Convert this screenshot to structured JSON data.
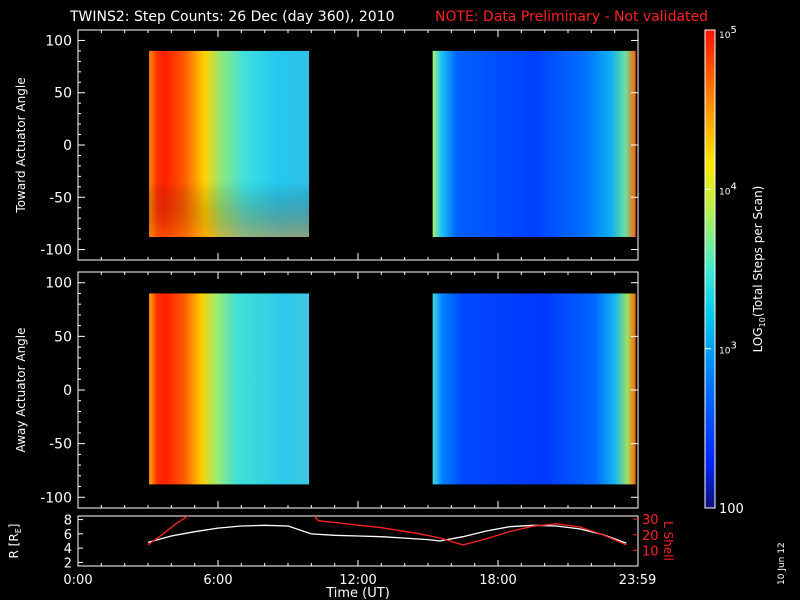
{
  "header": {
    "title": "TWINS2: Step Counts: 26 Dec (day 360), 2010",
    "note": "NOTE: Data Preliminary - Not validated",
    "note_color": "#ff2020"
  },
  "footer": {
    "date_stamp": "10 Jun 12"
  },
  "colors": {
    "background": "#000000",
    "axes": "#ffffff",
    "lshell": "#ff2020",
    "radius": "#ffffff"
  },
  "colorbar": {
    "label": "LOG10(Total Steps per Scan)",
    "label_main": "LOG",
    "label_sub": "10",
    "label_rest": "(Total Steps per Scan)",
    "ticks": [
      {
        "value": 100,
        "text": "100"
      },
      {
        "value": 1000,
        "text": "10^3"
      },
      {
        "value": 10000,
        "text": "10^4"
      },
      {
        "value": 100000,
        "text": "10^5"
      }
    ],
    "scale": "log",
    "range": [
      100,
      100000
    ]
  },
  "chart_data": [
    {
      "type": "heatmap",
      "title": "",
      "xlabel": "",
      "ylabel": "Toward Actuator Angle",
      "xlim": [
        0,
        24
      ],
      "ylim": [
        -110,
        110
      ],
      "yticks": [
        100,
        50,
        0,
        -50,
        -100
      ],
      "data_blocks": [
        {
          "t_start": 3.05,
          "t_end": 9.9,
          "angle_range": [
            -88,
            90
          ]
        },
        {
          "t_start": 15.2,
          "t_end": 23.9,
          "angle_range": [
            -88,
            90
          ]
        }
      ]
    },
    {
      "type": "heatmap",
      "title": "",
      "xlabel": "",
      "ylabel": "Away Actuator Angle",
      "xlim": [
        0,
        24
      ],
      "ylim": [
        -110,
        110
      ],
      "yticks": [
        100,
        50,
        0,
        -50,
        -100
      ],
      "data_blocks": [
        {
          "t_start": 3.05,
          "t_end": 9.9,
          "angle_range": [
            -88,
            90
          ]
        },
        {
          "t_start": 15.2,
          "t_end": 23.9,
          "angle_range": [
            -88,
            90
          ]
        }
      ]
    },
    {
      "type": "line",
      "title": "",
      "xlabel": "Time (UT)",
      "xticks": [
        {
          "value": 0,
          "text": "0:00"
        },
        {
          "value": 6,
          "text": "6:00"
        },
        {
          "value": 12,
          "text": "12:00"
        },
        {
          "value": 18,
          "text": "18:00"
        },
        {
          "value": 23.98,
          "text": "23:59"
        }
      ],
      "xlim": [
        0,
        24
      ],
      "ylabel_left": "R [RE]",
      "ylabel_left_main": "R [R",
      "ylabel_left_sub": "E",
      "ylabel_left_end": "]",
      "ylim_left": [
        1.5,
        8.5
      ],
      "yticks_left": [
        2,
        4,
        6,
        8
      ],
      "ylabel_right": "L Shell",
      "ylim_right": [
        0,
        32
      ],
      "yticks_right": [
        10,
        20,
        30
      ],
      "series": [
        {
          "axis": "left",
          "color": "#ffffff",
          "x": [
            3.0,
            4.0,
            5.0,
            6.0,
            7.0,
            8.0,
            9.0,
            10.0,
            11.0,
            12.0,
            13.0,
            14.0,
            15.0,
            15.5,
            16.5,
            17.5,
            18.5,
            19.5,
            20.5,
            21.5,
            22.5,
            23.5
          ],
          "y": [
            4.8,
            5.7,
            6.3,
            6.8,
            7.1,
            7.2,
            7.1,
            6.0,
            5.8,
            5.7,
            5.6,
            5.4,
            5.2,
            5.0,
            5.6,
            6.4,
            7.0,
            7.2,
            7.1,
            6.7,
            5.9,
            4.7
          ]
        },
        {
          "axis": "right",
          "color": "#ff2020",
          "x": [
            3.0,
            3.6,
            4.2,
            4.8,
            5.1,
            9.9,
            10.3,
            11.5,
            13.0,
            14.5,
            15.5,
            16.5,
            17.5,
            18.5,
            19.5,
            20.5,
            21.5,
            22.5,
            23.5
          ],
          "y": [
            13.5,
            20.0,
            27.0,
            33.0,
            36.0,
            36.0,
            29.0,
            27.0,
            24.5,
            21.0,
            18.0,
            13.5,
            17.5,
            22.0,
            25.5,
            27.0,
            25.0,
            20.0,
            13.5
          ]
        }
      ]
    }
  ]
}
